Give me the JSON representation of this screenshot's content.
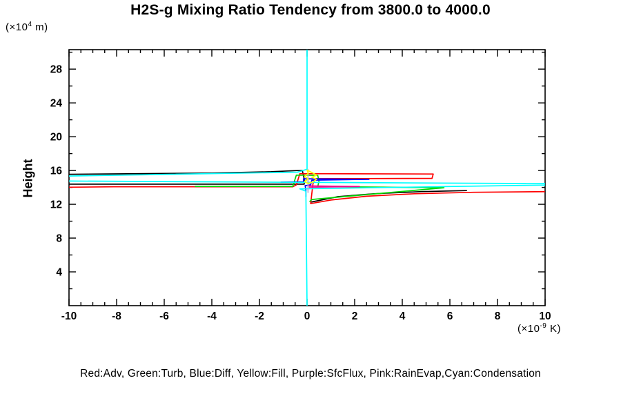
{
  "chart_data": {
    "type": "line",
    "title": "H2S-g Mixing Ratio Tendency from 3800.0 to 4000.0",
    "ylabel": "Height",
    "y_unit": {
      "prefix": "(×10",
      "sup": "4",
      "suffix": " m)"
    },
    "x_unit": {
      "prefix": "(×10",
      "sup": "-9",
      "suffix": " K)"
    },
    "xlim": [
      -10,
      10
    ],
    "ylim": [
      0,
      30.3
    ],
    "grid": false,
    "legend_position": "bottom",
    "legend_text": "Red:Adv, Green:Turb, Blue:Diff, Yellow:Fill, Purple:SfcFlux, Pink:RainEvap,Cyan:Condensation",
    "x_ticks": {
      "labels": [
        "-10",
        "-8",
        "-6",
        "-4",
        "-2",
        "0",
        "2",
        "4",
        "6",
        "8",
        "10"
      ],
      "values": [
        -10,
        -8,
        -6,
        -4,
        -2,
        0,
        2,
        4,
        6,
        8,
        10
      ],
      "minor_step": 0.5
    },
    "y_ticks": {
      "labels": [
        "4",
        "8",
        "12",
        "16",
        "20",
        "24",
        "28"
      ],
      "values": [
        4,
        8,
        12,
        16,
        20,
        24,
        28
      ],
      "minor_step": 2
    },
    "series": [
      {
        "name": "(black, not in legend)",
        "color": "#000000",
        "paths": [
          [
            [
              -10,
              15.55
            ],
            [
              -4,
              15.7
            ],
            [
              -1.5,
              15.85
            ],
            [
              -0.2,
              16.02
            ],
            [
              -0.12,
              15.0
            ],
            [
              -0.12,
              14.38
            ],
            [
              -10,
              14.38
            ]
          ],
          [
            [
              0.15,
              12.25
            ],
            [
              1.3,
              12.9
            ],
            [
              2.8,
              13.25
            ],
            [
              4.8,
              13.5
            ],
            [
              6.7,
              13.62
            ]
          ]
        ]
      },
      {
        "name": "Adv",
        "color": "#ff0000",
        "paths": [
          [
            [
              -10,
              14.02
            ],
            [
              -8.1,
              14.07
            ],
            [
              -0.6,
              14.07
            ],
            [
              -0.45,
              14.3
            ],
            [
              -0.3,
              15.62
            ],
            [
              5.3,
              15.58
            ],
            [
              5.25,
              15.07
            ],
            [
              0.35,
              15.03
            ],
            [
              0.25,
              14.45
            ],
            [
              0.15,
              12.08
            ],
            [
              1.0,
              12.5
            ],
            [
              2.5,
              12.95
            ],
            [
              4.5,
              13.25
            ],
            [
              7.0,
              13.42
            ],
            [
              10.2,
              13.5
            ]
          ]
        ]
      },
      {
        "name": "Turb",
        "color": "#00d800",
        "paths": [
          [
            [
              -4.7,
              14.12
            ],
            [
              -0.6,
              14.12
            ],
            [
              -0.45,
              15.45
            ],
            [
              0.45,
              15.42
            ],
            [
              0.5,
              14.75
            ],
            [
              0.45,
              14.1
            ],
            [
              5.75,
              13.96
            ],
            [
              0.2,
              12.57
            ],
            [
              0.12,
              12.35
            ]
          ]
        ]
      },
      {
        "name": "Diff",
        "color": "#0000ff",
        "paths": [
          [
            [
              -1.1,
              14.62
            ],
            [
              -0.15,
              14.66
            ],
            [
              -0.15,
              15.02
            ],
            [
              2.6,
              14.95
            ],
            [
              0.2,
              14.85
            ],
            [
              0.15,
              14.3
            ],
            [
              -0.08,
              14.2
            ],
            [
              -0.05,
              13.7
            ],
            [
              -0.05,
              12.9
            ]
          ]
        ]
      },
      {
        "name": "RainEvap",
        "color": "#f0008c",
        "paths": [
          [
            [
              0.05,
              14.18
            ],
            [
              2.2,
              14.1
            ],
            [
              0.1,
              14.02
            ]
          ]
        ]
      },
      {
        "name": "Condensation",
        "color": "#00ffff",
        "paths": [
          [
            [
              0,
              30.3
            ],
            [
              0,
              16.15
            ],
            [
              -0.4,
              15.8
            ],
            [
              -12,
              15.25
            ],
            [
              -12,
              14.78
            ],
            [
              -0.5,
              14.6
            ],
            [
              10.5,
              14.44
            ],
            [
              10.5,
              14.3
            ],
            [
              -0.3,
              13.83
            ],
            [
              -0.05,
              13.55
            ],
            [
              0,
              0
            ]
          ]
        ]
      },
      {
        "name": "SfcFlux",
        "color": "#b8a8d8",
        "paths": [
          [
            [
              0.04,
              16.1
            ],
            [
              0.04,
              13.4
            ]
          ]
        ]
      },
      {
        "name": "Fill",
        "color": "#ffff00",
        "paths": [
          [
            [
              0,
              16.05
            ],
            [
              0.25,
              15.7
            ],
            [
              0.4,
              15.45
            ],
            [
              0.2,
              15.2
            ],
            [
              0.4,
              14.95
            ],
            [
              0.25,
              14.65
            ],
            [
              0.05,
              14.45
            ],
            [
              -0.1,
              14.7
            ],
            [
              0.05,
              15.0
            ],
            [
              -0.1,
              15.3
            ],
            [
              0.05,
              15.65
            ],
            [
              0,
              16.05
            ]
          ]
        ]
      }
    ]
  }
}
